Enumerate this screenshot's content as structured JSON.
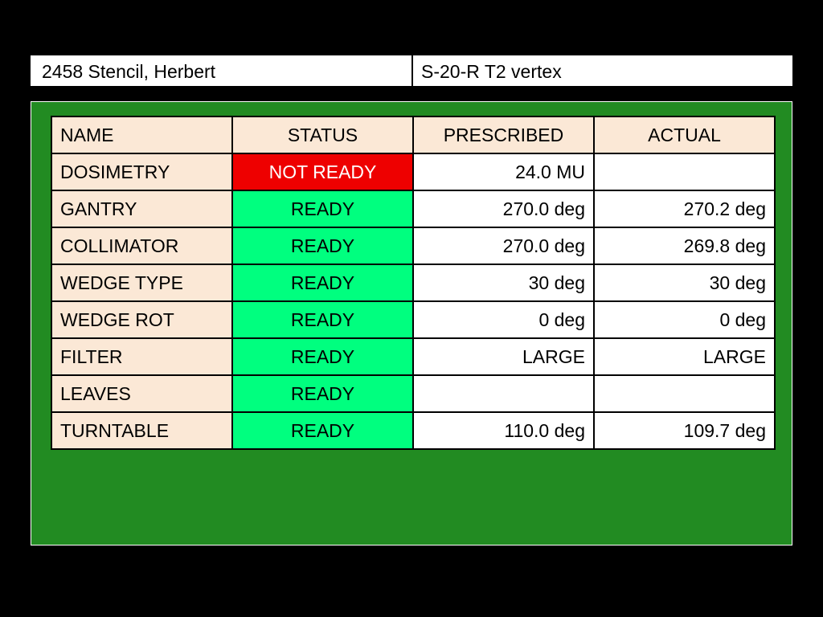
{
  "header": {
    "patient": "2458 Stencil, Herbert",
    "field": "S-20-R T2 vertex"
  },
  "table": {
    "columns": [
      "NAME",
      "STATUS",
      "PRESCRIBED",
      "ACTUAL"
    ],
    "rows": [
      {
        "name": "DOSIMETRY",
        "status": "NOT READY",
        "state": "not-ready",
        "prescribed": "24.0 MU",
        "actual": ""
      },
      {
        "name": "GANTRY",
        "status": "READY",
        "state": "ready",
        "prescribed": "270.0 deg",
        "actual": "270.2 deg"
      },
      {
        "name": "COLLIMATOR",
        "status": "READY",
        "state": "ready",
        "prescribed": "270.0 deg",
        "actual": "269.8 deg"
      },
      {
        "name": "WEDGE TYPE",
        "status": "READY",
        "state": "ready",
        "prescribed": "30 deg",
        "actual": "30 deg"
      },
      {
        "name": "WEDGE ROT",
        "status": "READY",
        "state": "ready",
        "prescribed": "0 deg",
        "actual": "0 deg"
      },
      {
        "name": "FILTER",
        "status": "READY",
        "state": "ready",
        "prescribed": "LARGE",
        "actual": "LARGE"
      },
      {
        "name": "LEAVES",
        "status": "READY",
        "state": "ready",
        "prescribed": "",
        "actual": ""
      },
      {
        "name": "TURNTABLE",
        "status": "READY",
        "state": "ready",
        "prescribed": "110.0 deg",
        "actual": "109.7 deg"
      }
    ]
  },
  "colors": {
    "background": "#000000",
    "panel": "#228b22",
    "header_cell": "#fbe8d6",
    "ready": "#00ff7f",
    "not_ready": "#ee0000"
  }
}
